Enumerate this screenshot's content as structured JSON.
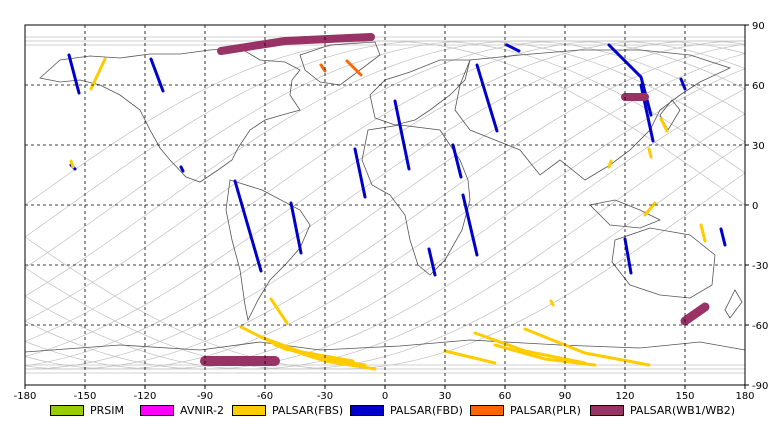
{
  "x_ticks": [
    "-180",
    "-150",
    "-120",
    "-90",
    "-60",
    "-30",
    "0",
    "30",
    "60",
    "90",
    "120",
    "150",
    "180"
  ],
  "y_ticks": [
    "90",
    "60",
    "30",
    "0",
    "-30",
    "-60",
    "-90"
  ],
  "legend": [
    {
      "label": "PRSIM",
      "color": "#99cc00"
    },
    {
      "label": "AVNIR-2",
      "color": "#ff00ff"
    },
    {
      "label": "PALSAR(FBS)",
      "color": "#ffcc00"
    },
    {
      "label": "PALSAR(FBD)",
      "color": "#0000cc"
    },
    {
      "label": "PALSAR(PLR)",
      "color": "#ff6600"
    },
    {
      "label": "PALSAR(WB1/WB2)",
      "color": "#993366"
    }
  ],
  "colors": {
    "frame": "#000000",
    "grid": "#000000",
    "orbit": "#c0c0c0",
    "coast": "#555555"
  },
  "chart_data": {
    "type": "map",
    "xlim": [
      -180,
      180
    ],
    "ylim": [
      -90,
      90
    ],
    "grid": true,
    "swaths": [
      {
        "mode": "PALSAR(FBD)",
        "path": [
          [
            -158,
            75
          ],
          [
            -153,
            56
          ]
        ]
      },
      {
        "mode": "PALSAR(FBD)",
        "path": [
          [
            -117,
            73
          ],
          [
            -111,
            57
          ]
        ]
      },
      {
        "mode": "PALSAR(FBD)",
        "path": [
          [
            -75,
            12
          ],
          [
            -62,
            -33
          ]
        ]
      },
      {
        "mode": "PALSAR(FBD)",
        "path": [
          [
            -47,
            1
          ],
          [
            -42,
            -24
          ]
        ]
      },
      {
        "mode": "PALSAR(FBD)",
        "path": [
          [
            5,
            52
          ],
          [
            12,
            18
          ]
        ]
      },
      {
        "mode": "PALSAR(FBD)",
        "path": [
          [
            -15,
            28
          ],
          [
            -10,
            4
          ]
        ]
      },
      {
        "mode": "PALSAR(FBD)",
        "path": [
          [
            34,
            30
          ],
          [
            38,
            14
          ]
        ]
      },
      {
        "mode": "PALSAR(FBD)",
        "path": [
          [
            39,
            5
          ],
          [
            46,
            -25
          ]
        ]
      },
      {
        "mode": "PALSAR(FBD)",
        "path": [
          [
            22,
            -22
          ],
          [
            25,
            -35
          ]
        ]
      },
      {
        "mode": "PALSAR(FBD)",
        "path": [
          [
            46,
            70
          ],
          [
            56,
            37
          ]
        ]
      },
      {
        "mode": "PALSAR(FBD)",
        "path": [
          [
            61,
            80
          ],
          [
            67,
            77
          ]
        ]
      },
      {
        "mode": "PALSAR(FBD)",
        "path": [
          [
            112,
            80
          ],
          [
            128,
            64
          ],
          [
            133,
            45
          ]
        ]
      },
      {
        "mode": "PALSAR(FBD)",
        "path": [
          [
            128,
            60
          ],
          [
            134,
            32
          ]
        ]
      },
      {
        "mode": "PALSAR(FBD)",
        "path": [
          [
            120,
            -17
          ],
          [
            123,
            -34
          ]
        ]
      },
      {
        "mode": "PALSAR(FBD)",
        "path": [
          [
            168,
            -12
          ],
          [
            170,
            -20
          ]
        ]
      },
      {
        "mode": "PALSAR(FBD)",
        "path": [
          [
            148,
            63
          ],
          [
            150,
            58
          ]
        ]
      },
      {
        "mode": "PALSAR(FBD)",
        "path": [
          [
            -157,
            20
          ],
          [
            -155,
            18
          ]
        ]
      },
      {
        "mode": "PALSAR(FBD)",
        "path": [
          [
            -102,
            19
          ],
          [
            -101,
            17
          ]
        ]
      },
      {
        "mode": "PALSAR(FBS)",
        "path": [
          [
            -140,
            73
          ],
          [
            -147,
            58
          ]
        ]
      },
      {
        "mode": "PALSAR(FBS)",
        "path": [
          [
            -57,
            -47
          ],
          [
            -49,
            -59
          ]
        ]
      },
      {
        "mode": "PALSAR(FBS)",
        "path": [
          [
            -72,
            -61
          ],
          [
            -50,
            -72
          ],
          [
            -16,
            -78
          ]
        ]
      },
      {
        "mode": "PALSAR(FBS)",
        "path": [
          [
            -62,
            -66
          ],
          [
            -35,
            -76
          ],
          [
            -10,
            -80
          ]
        ]
      },
      {
        "mode": "PALSAR(FBS)",
        "path": [
          [
            -55,
            -70
          ],
          [
            -30,
            -78
          ],
          [
            -5,
            -82
          ]
        ]
      },
      {
        "mode": "PALSAR(FBS)",
        "path": [
          [
            45,
            -64
          ],
          [
            70,
            -73
          ],
          [
            100,
            -79
          ]
        ]
      },
      {
        "mode": "PALSAR(FBS)",
        "path": [
          [
            55,
            -70
          ],
          [
            80,
            -77
          ],
          [
            105,
            -80
          ]
        ]
      },
      {
        "mode": "PALSAR(FBS)",
        "path": [
          [
            70,
            -62
          ],
          [
            100,
            -74
          ],
          [
            132,
            -80
          ]
        ]
      },
      {
        "mode": "PALSAR(FBS)",
        "path": [
          [
            30,
            -73
          ],
          [
            55,
            -79
          ]
        ]
      },
      {
        "mode": "PALSAR(FBS)",
        "path": [
          [
            158,
            -10
          ],
          [
            160,
            -18
          ]
        ]
      },
      {
        "mode": "PALSAR(FBS)",
        "path": [
          [
            138,
            43
          ],
          [
            141,
            37
          ]
        ]
      },
      {
        "mode": "PALSAR(FBS)",
        "path": [
          [
            132,
            28
          ],
          [
            133,
            24
          ]
        ]
      },
      {
        "mode": "PALSAR(FBS)",
        "path": [
          [
            113,
            22
          ],
          [
            112,
            19
          ]
        ]
      },
      {
        "mode": "PALSAR(FBS)",
        "path": [
          [
            135,
            1
          ],
          [
            130,
            -5
          ]
        ]
      },
      {
        "mode": "PALSAR(FBS)",
        "path": [
          [
            -157,
            22
          ],
          [
            -156,
            19
          ]
        ]
      },
      {
        "mode": "PALSAR(FBS)",
        "path": [
          [
            83,
            -48
          ],
          [
            84,
            -50
          ]
        ]
      },
      {
        "mode": "PALSAR(PLR)",
        "path": [
          [
            -19,
            72
          ],
          [
            -12,
            65
          ]
        ]
      },
      {
        "mode": "PALSAR(PLR)",
        "path": [
          [
            -32,
            70
          ],
          [
            -30,
            67
          ]
        ]
      },
      {
        "mode": "PALSAR(WB1/WB2)",
        "path": [
          [
            -82,
            77
          ],
          [
            -50,
            82
          ],
          [
            -7,
            84
          ]
        ],
        "width": 8
      },
      {
        "mode": "PALSAR(WB1/WB2)",
        "path": [
          [
            120,
            54
          ],
          [
            130,
            54
          ]
        ],
        "width": 8
      },
      {
        "mode": "PALSAR(WB1/WB2)",
        "path": [
          [
            150,
            -58
          ],
          [
            160,
            -51
          ]
        ],
        "width": 9
      },
      {
        "mode": "PALSAR(WB1/WB2)",
        "path": [
          [
            -90,
            -78
          ],
          [
            -55,
            -78
          ]
        ],
        "width": 10
      }
    ]
  }
}
